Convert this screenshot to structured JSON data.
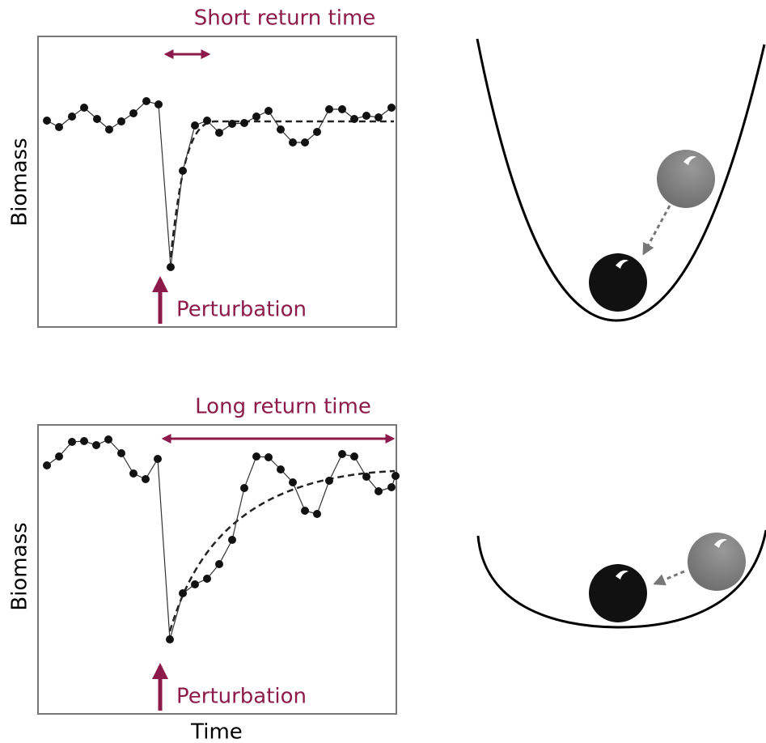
{
  "panels": [
    {
      "annotation": "Short return time",
      "y_label": "Biomass",
      "event": "Perturbation"
    },
    {
      "annotation": "Long return time",
      "y_label": "Biomass",
      "event": "Perturbation"
    }
  ],
  "x_label": "Time"
}
